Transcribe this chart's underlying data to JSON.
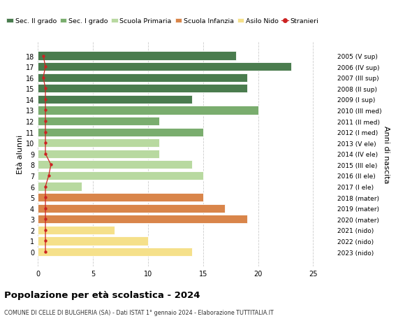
{
  "ages": [
    18,
    17,
    16,
    15,
    14,
    13,
    12,
    11,
    10,
    9,
    8,
    7,
    6,
    5,
    4,
    3,
    2,
    1,
    0
  ],
  "years": [
    "2005 (V sup)",
    "2006 (IV sup)",
    "2007 (III sup)",
    "2008 (II sup)",
    "2009 (I sup)",
    "2010 (III med)",
    "2011 (II med)",
    "2012 (I med)",
    "2013 (V ele)",
    "2014 (IV ele)",
    "2015 (III ele)",
    "2016 (II ele)",
    "2017 (I ele)",
    "2018 (mater)",
    "2019 (mater)",
    "2020 (mater)",
    "2021 (nido)",
    "2022 (nido)",
    "2023 (nido)"
  ],
  "values": [
    18,
    23,
    19,
    19,
    14,
    20,
    11,
    15,
    11,
    11,
    14,
    15,
    4,
    15,
    17,
    19,
    7,
    10,
    14
  ],
  "colors": [
    "#4a7c4e",
    "#4a7c4e",
    "#4a7c4e",
    "#4a7c4e",
    "#4a7c4e",
    "#7aad6e",
    "#7aad6e",
    "#7aad6e",
    "#b8d9a0",
    "#b8d9a0",
    "#b8d9a0",
    "#b8d9a0",
    "#b8d9a0",
    "#d9854a",
    "#d9854a",
    "#d9854a",
    "#f5e08a",
    "#f5e08a",
    "#f5e08a"
  ],
  "stranieri": [
    0.5,
    0.7,
    0.5,
    0.7,
    0.7,
    0.7,
    0.7,
    0.7,
    0.7,
    0.7,
    1.2,
    1.0,
    0.7,
    0.7,
    0.7,
    0.7,
    0.7,
    0.7,
    0.7
  ],
  "stranieri_color": "#cc2222",
  "legend_labels": [
    "Sec. II grado",
    "Sec. I grado",
    "Scuola Primaria",
    "Scuola Infanzia",
    "Asilo Nido",
    "Stranieri"
  ],
  "legend_colors": [
    "#4a7c4e",
    "#7aad6e",
    "#b8d9a0",
    "#d9854a",
    "#f5e08a",
    "#cc2222"
  ],
  "title": "Popolazione per età scolastica - 2024",
  "subtitle": "COMUNE DI CELLE DI BULGHERIA (SA) - Dati ISTAT 1° gennaio 2024 - Elaborazione TUTTITALIA.IT",
  "ylabel_left": "Età alunni",
  "ylabel_right": "Anni di nascita",
  "xlim": [
    0,
    27
  ],
  "xticks": [
    0,
    5,
    10,
    15,
    20,
    25
  ],
  "bg_color": "#ffffff",
  "grid_color": "#cccccc",
  "bar_height": 0.78
}
